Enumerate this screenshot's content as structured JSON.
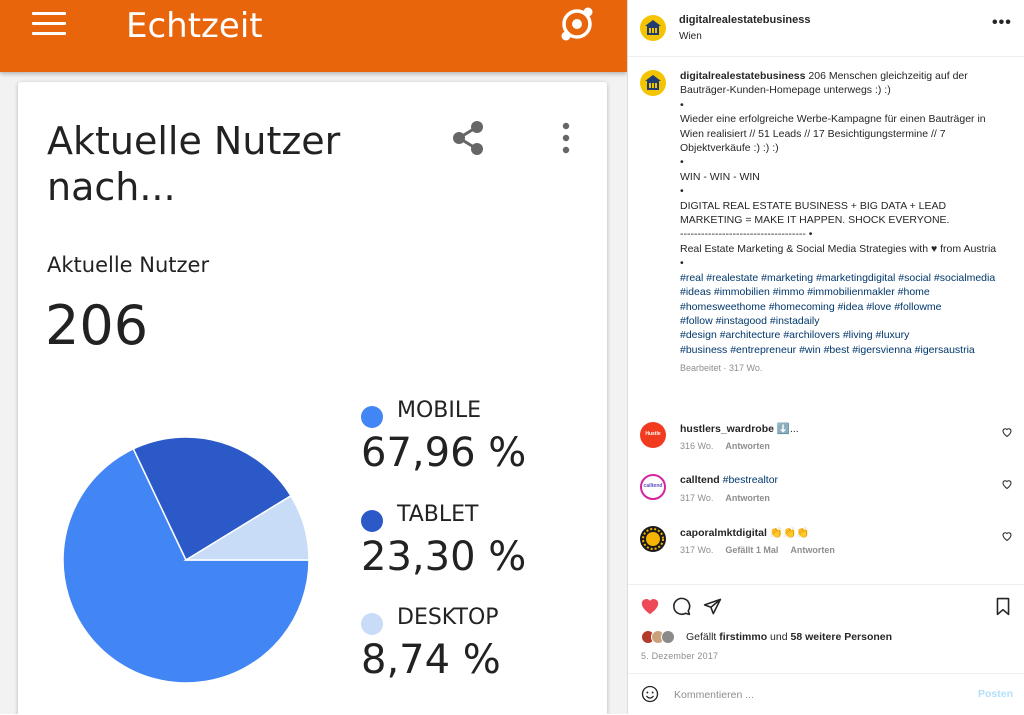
{
  "app": {
    "title": "Echtzeit",
    "card": {
      "title": "Aktuelle Nutzer nach...",
      "metric_label": "Aktuelle Nutzer",
      "metric_value": "206"
    },
    "legend": [
      {
        "name": "MOBILE",
        "value": "67,96 %",
        "color": "#4285f4"
      },
      {
        "name": "TABLET",
        "value": "23,30 %",
        "color": "#2b5ac8"
      },
      {
        "name": "DESKTOP",
        "value": "8,74 %",
        "color": "#c8dcf8"
      }
    ]
  },
  "chart_data": {
    "type": "pie",
    "categories": [
      "MOBILE",
      "TABLET",
      "DESKTOP"
    ],
    "values": [
      67.96,
      23.3,
      8.74
    ],
    "colors": [
      "#4285f4",
      "#2b5ac8",
      "#c8dcf8"
    ]
  },
  "post": {
    "username": "digitalrealestatebusiness",
    "location": "Wien",
    "caption": {
      "lines": [
        "206 Menschen gleichzeitig auf der Bauträger-Kunden-Homepage unterwegs :) :)",
        "•",
        "Wieder eine erfolgreiche Werbe-Kampagne für einen Bauträger in Wien realisiert // 51 Leads // 17 Besichtigungstermine // 7 Objektverkäufe :) :) :)",
        "•",
        "WIN - WIN - WIN",
        "•",
        "DIGITAL REAL ESTATE BUSINESS + BIG DATA + LEAD MARKETING = MAKE IT HAPPEN. SHOCK EVERYONE.",
        "------------------------------------ •",
        "Real Estate Marketing & Social Media Strategies with ♥ from Austria",
        "•"
      ],
      "hashtags": [
        "#real #realestate #marketing #marketingdigital #social #socialmedia",
        "#ideas #immobilien #immo #immobilienmakler #home #homesweethome #homecoming #idea #love #followme",
        "#follow #instagood #instadaily",
        "#design #architecture #archilovers #living #luxury",
        "#business #entrepreneur #win #best #igersvienna #igersaustria"
      ],
      "meta": "Bearbeitet · 317 Wo."
    },
    "comments": [
      {
        "user": "hustlers_wardrobe",
        "text": "⬇️...",
        "time": "316 Wo.",
        "likes": "",
        "reply": "Antworten",
        "avatar_color": "#f23a1e",
        "avatar_text": "Hustle"
      },
      {
        "user": "calltend",
        "text": "#bestrealtor",
        "time": "317 Wo.",
        "likes": "",
        "reply": "Antworten",
        "avatar_color": "#ffffff",
        "avatar_text": "calltend"
      },
      {
        "user": "caporalmktdigital",
        "text": "👏👏👏",
        "time": "317 Wo.",
        "likes": "Gefällt 1 Mal",
        "reply": "Antworten",
        "avatar_color": "#1a1a1a",
        "avatar_text": ""
      }
    ],
    "likes": {
      "prefix": "Gefällt",
      "user": "firstimmo",
      "middle": "und",
      "others": "58 weitere Personen"
    },
    "date": "5. Dezember 2017",
    "comment_placeholder": "Kommentieren ...",
    "post_label": "Posten"
  }
}
